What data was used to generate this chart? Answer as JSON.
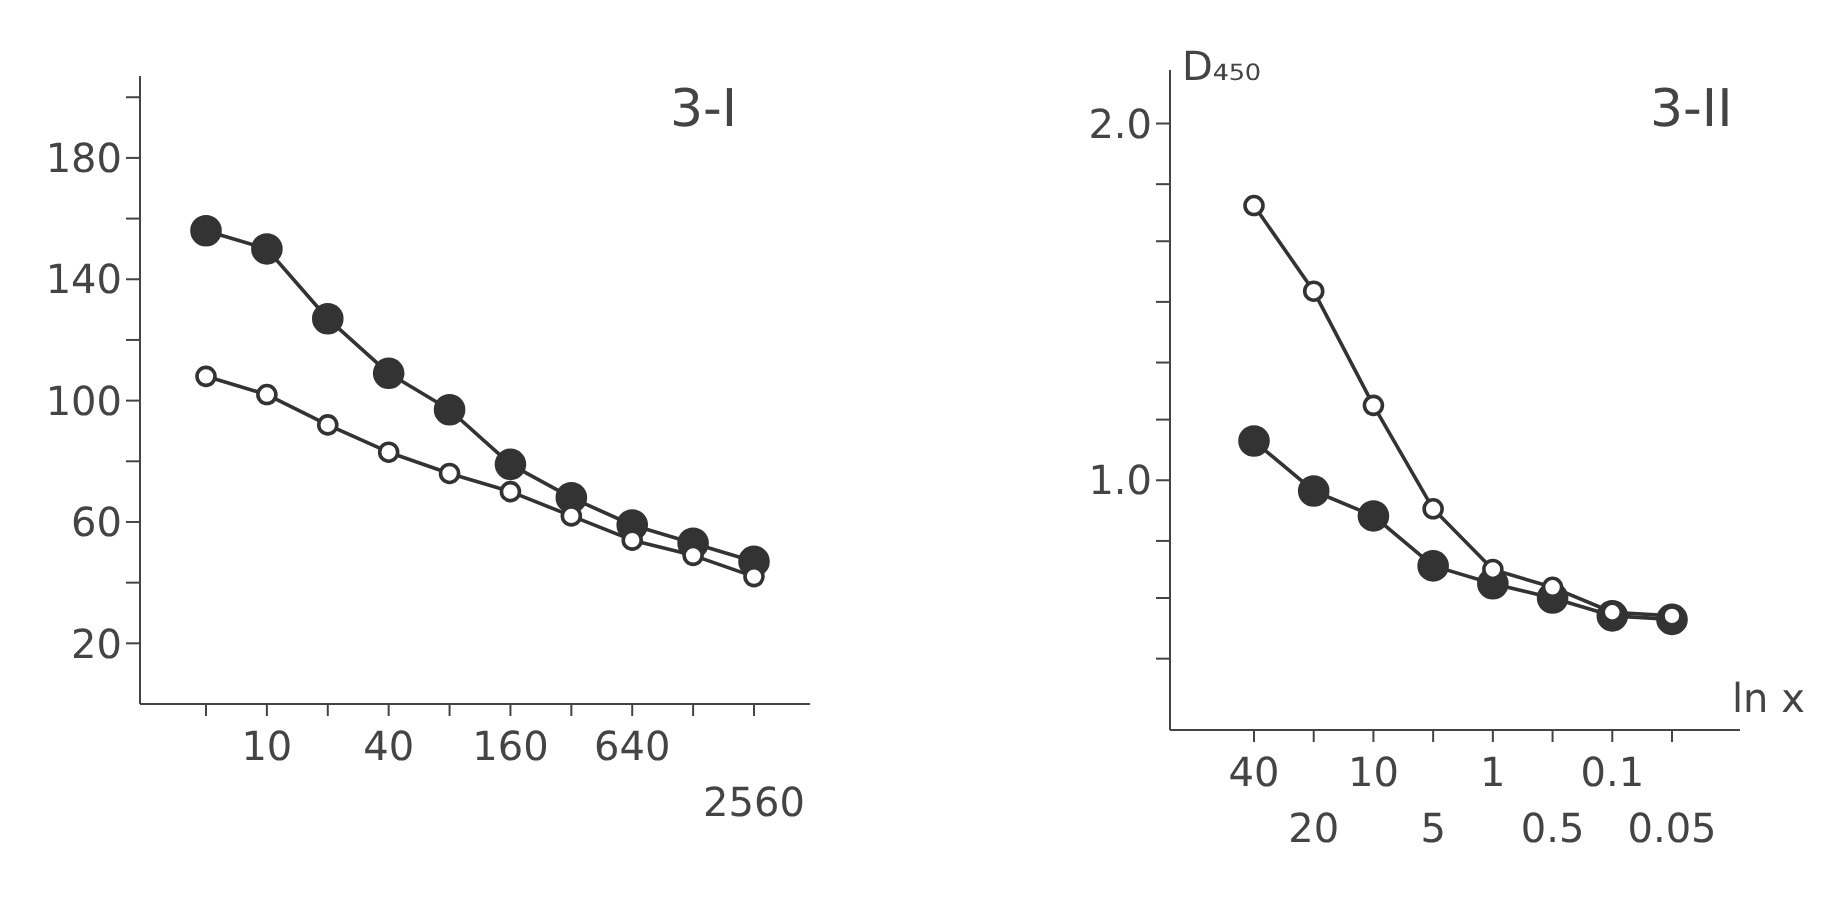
{
  "chart_data": [
    {
      "type": "line",
      "title": "3-I",
      "categories": [
        null,
        "10",
        null,
        "40",
        null,
        "160",
        null,
        "640",
        null,
        "2560"
      ],
      "marker": "circle",
      "series": [
        {
          "color": "#333333",
          "values": [
            156,
            150,
            127,
            109,
            97,
            79,
            68,
            59,
            53,
            47
          ]
        },
        {
          "color": "#333333",
          "values": [
            108,
            102,
            92,
            83,
            76,
            70,
            62,
            54,
            49,
            42
          ]
        }
      ],
      "ylim": [
        0,
        207
      ],
      "yticks": [
        {
          "value": 20,
          "label": "20"
        },
        {
          "value": 40,
          "label": null
        },
        {
          "value": 60,
          "label": "60"
        },
        {
          "value": 80,
          "label": null
        },
        {
          "value": 100,
          "label": "100"
        },
        {
          "value": 120,
          "label": null
        },
        {
          "value": 140,
          "label": "140"
        },
        {
          "value": 160,
          "label": null
        },
        {
          "value": 180,
          "label": "180"
        },
        {
          "value": 200,
          "label": null
        }
      ]
    },
    {
      "type": "line",
      "title": "3-II",
      "ylabel": "D₄₅₀",
      "xlabel": "ln x",
      "categories": [
        "40",
        "20",
        "10",
        "5",
        "1",
        "0.5",
        "0.1",
        "0.05"
      ],
      "marker": "circle",
      "series": [
        {
          "color": "#333333",
          "values": [
            1.11,
            0.97,
            0.9,
            0.76,
            0.71,
            0.67,
            0.62,
            0.61
          ]
        },
        {
          "color": "#333333",
          "values": [
            1.77,
            1.53,
            1.21,
            0.92,
            0.75,
            0.7,
            0.63,
            0.62
          ]
        }
      ],
      "ylim": [
        0.3,
        2.15
      ],
      "yticks": [
        {
          "value": 0.5,
          "label": null
        },
        {
          "value": 0.67,
          "label": null
        },
        {
          "value": 0.83,
          "label": null
        },
        {
          "value": 1,
          "label": "1.0"
        },
        {
          "value": 1.17,
          "label": null
        },
        {
          "value": 1.33,
          "label": null
        },
        {
          "value": 1.5,
          "label": null
        },
        {
          "value": 1.67,
          "label": null
        },
        {
          "value": 1.83,
          "label": null
        },
        {
          "value": 2,
          "label": "2.0"
        }
      ]
    }
  ]
}
